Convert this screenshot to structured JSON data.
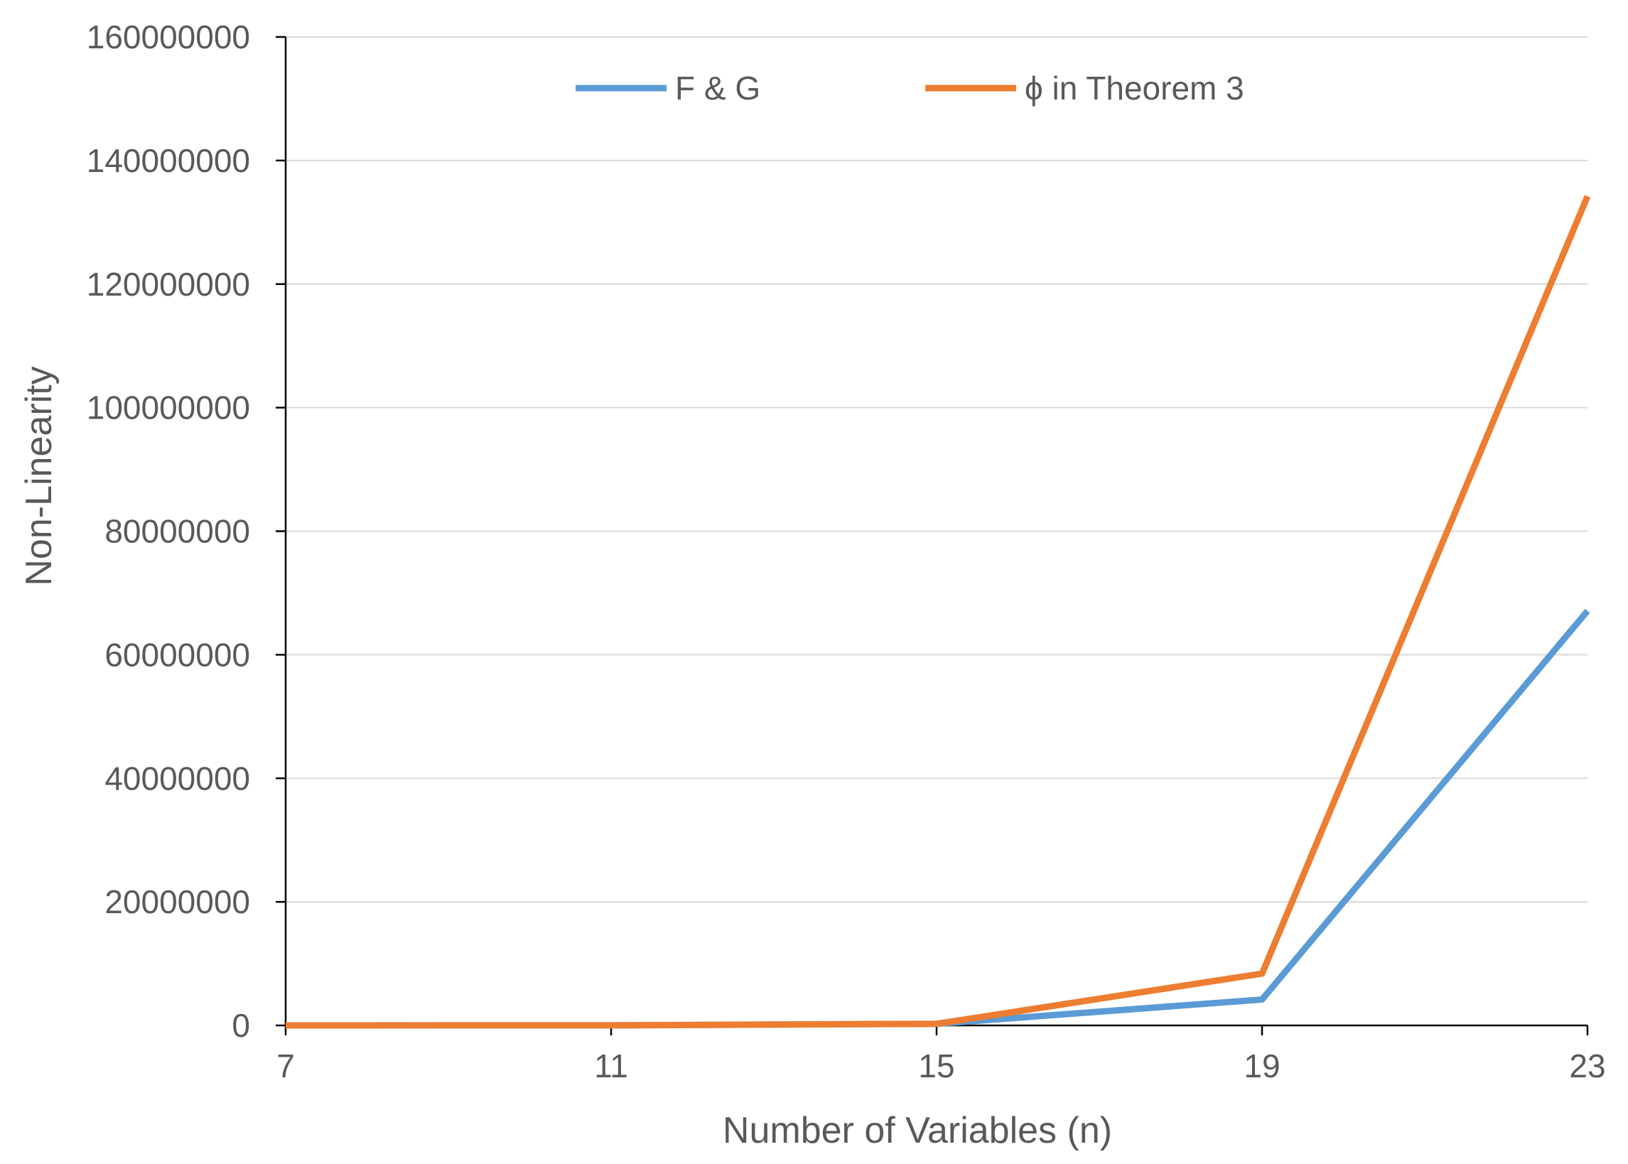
{
  "chart_data": {
    "type": "line",
    "title": "",
    "xlabel": "Number of Variables (n)",
    "ylabel": "Non-Linearity",
    "x": [
      7,
      11,
      15,
      19,
      23
    ],
    "x_tick_labels": [
      "7",
      "11",
      "15",
      "19",
      "23"
    ],
    "ylim": [
      0,
      160000000
    ],
    "y_ticks": [
      0,
      20000000,
      40000000,
      60000000,
      80000000,
      100000000,
      120000000,
      140000000,
      160000000
    ],
    "y_tick_labels": [
      "0",
      "20000000",
      "40000000",
      "60000000",
      "80000000",
      "100000000",
      "120000000",
      "140000000",
      "160000000"
    ],
    "grid": true,
    "legend_position": "top",
    "series": [
      {
        "name": "F & G",
        "color": "#5b9bd5",
        "values": [
          56,
          16256,
          262016,
          4192256,
          67100672
        ]
      },
      {
        "name": "ϕ  in Theorem 3",
        "color": "#ed7d31",
        "values": [
          60,
          16320,
          262528,
          8387584,
          134213632
        ]
      }
    ]
  }
}
